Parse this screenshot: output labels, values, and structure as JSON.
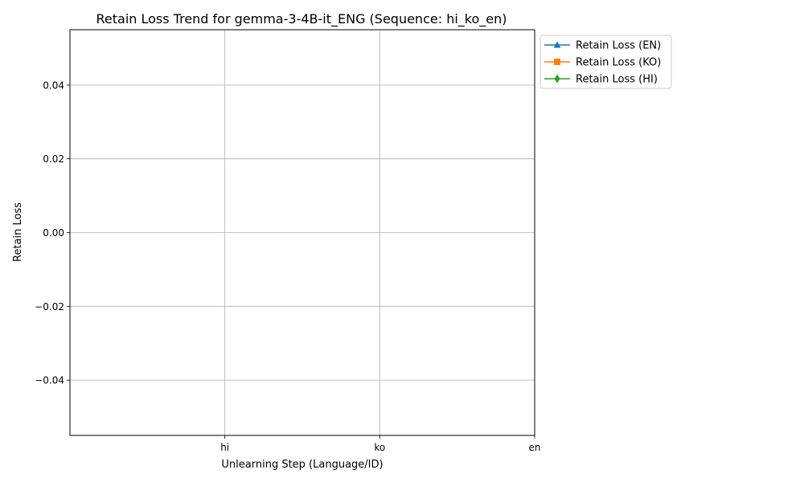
{
  "chart_data": {
    "type": "line",
    "title": "Retain Loss Trend for gemma-3-4B-it_ENG (Sequence: hi_ko_en)",
    "xlabel": "Unlearning Step (Language/ID)",
    "ylabel": "Retain Loss",
    "x_ticks": [
      "hi",
      "ko",
      "en"
    ],
    "y_ticks": [
      "0.04",
      "0.02",
      "0.00",
      "−0.02",
      "−0.04"
    ],
    "y_tick_values": [
      0.04,
      0.02,
      0.0,
      -0.02,
      -0.04
    ],
    "ylim": [
      -0.055,
      0.055
    ],
    "grid": true,
    "legend_position": "outside top-right",
    "series": [
      {
        "name": "Retain Loss (EN)",
        "color": "#1f77b4",
        "marker": "triangle",
        "values": []
      },
      {
        "name": "Retain Loss (KO)",
        "color": "#ff7f0e",
        "marker": "square",
        "values": []
      },
      {
        "name": "Retain Loss (HI)",
        "color": "#2ca02c",
        "marker": "diamond",
        "values": []
      }
    ]
  }
}
